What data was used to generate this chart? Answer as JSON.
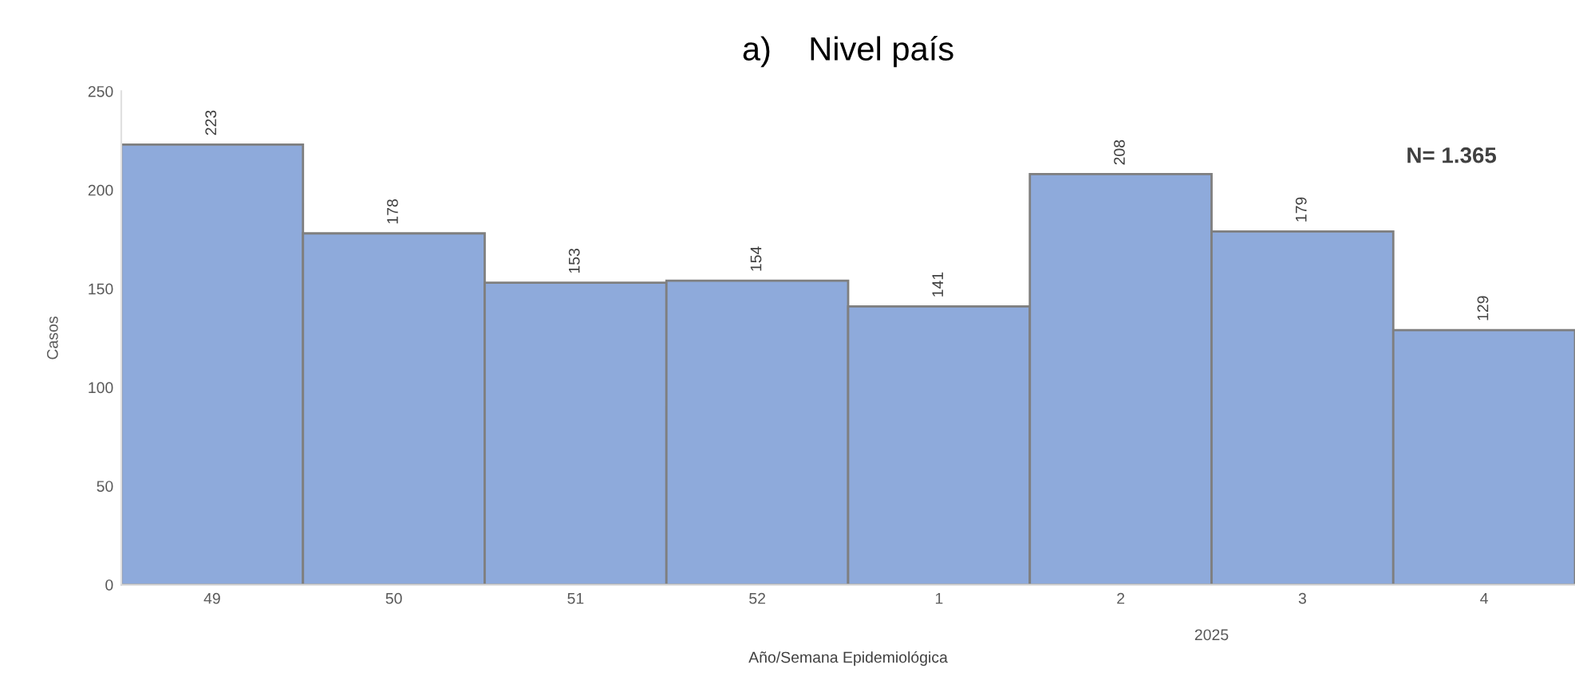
{
  "chart_data": {
    "type": "bar",
    "title": "a)    Nivel país",
    "xlabel": "Año/Semana Epidemiológica",
    "ylabel": "Casos",
    "categories": [
      "49",
      "50",
      "51",
      "52",
      "1",
      "2",
      "3",
      "4"
    ],
    "values": [
      223,
      178,
      153,
      154,
      141,
      208,
      179,
      129
    ],
    "color": "#8eaadb",
    "ylim": [
      0,
      250
    ],
    "yticks": [
      0,
      50,
      100,
      150,
      200,
      250
    ],
    "grid": false,
    "data_labels": true,
    "annotations": [
      "N= 1.365",
      "2025"
    ]
  }
}
